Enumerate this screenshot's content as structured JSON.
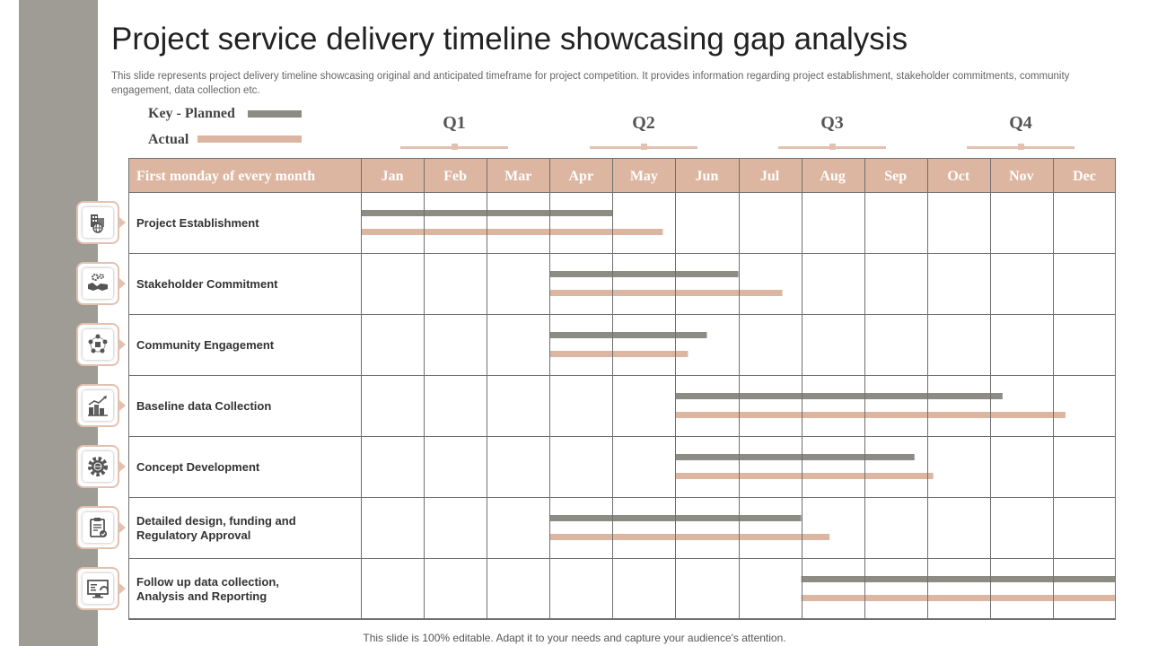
{
  "slide": {
    "title": "Project service delivery timeline showcasing gap analysis",
    "subtitle": "This slide represents project delivery timeline showcasing original and anticipated timeframe for project competition. It provides information regarding project establishment, stakeholder commitments, community engagement, data collection etc.",
    "footer": "This slide is 100% editable. Adapt it to your needs and capture your audience's attention."
  },
  "legend": {
    "planned_label": "Key - Planned",
    "actual_label": "Actual"
  },
  "quarters": [
    "Q1",
    "Q2",
    "Q3",
    "Q4"
  ],
  "colors": {
    "planned": "#8c8b84",
    "actual": "#ddb6a1",
    "header_bg": "#ddb6a1",
    "side_band": "#9e9c94",
    "grid": "#6f6f6f"
  },
  "chart_data": {
    "type": "gantt",
    "header_label": "First monday of every month",
    "months": [
      "Jan",
      "Feb",
      "Mar",
      "Apr",
      "May",
      "Jun",
      "Jul",
      "Aug",
      "Sep",
      "Oct",
      "Nov",
      "Dec"
    ],
    "x_unit": "months from start of Jan",
    "xlim": [
      0,
      12
    ],
    "series": [
      {
        "name": "Planned"
      },
      {
        "name": "Actual"
      }
    ],
    "tasks": [
      {
        "label": "Project Establishment",
        "icon": "building-globe-icon",
        "planned": [
          0,
          4
        ],
        "actual": [
          0,
          4.8
        ]
      },
      {
        "label": "Stakeholder Commitment",
        "icon": "handshake-gears-icon",
        "planned": [
          3,
          6
        ],
        "actual": [
          3,
          6.7
        ]
      },
      {
        "label": "Community Engagement",
        "icon": "community-circle-icon",
        "planned": [
          3,
          5.5
        ],
        "actual": [
          3,
          5.2
        ]
      },
      {
        "label": "Baseline data Collection",
        "icon": "growth-chart-buildings-icon",
        "planned": [
          5,
          10.2
        ],
        "actual": [
          5,
          11.2
        ]
      },
      {
        "label": "Concept Development",
        "icon": "gear-globe-icon",
        "planned": [
          5,
          8.8
        ],
        "actual": [
          5,
          9.1
        ]
      },
      {
        "label": "Detailed design, funding and Regulatory Approval",
        "icon": "clipboard-check-icon",
        "planned": [
          3,
          7
        ],
        "actual": [
          3,
          7.45
        ]
      },
      {
        "label": "Follow up data collection, Analysis and Reporting",
        "icon": "monitor-gauge-icon",
        "planned": [
          7,
          12
        ],
        "actual": [
          7,
          12
        ]
      }
    ]
  }
}
